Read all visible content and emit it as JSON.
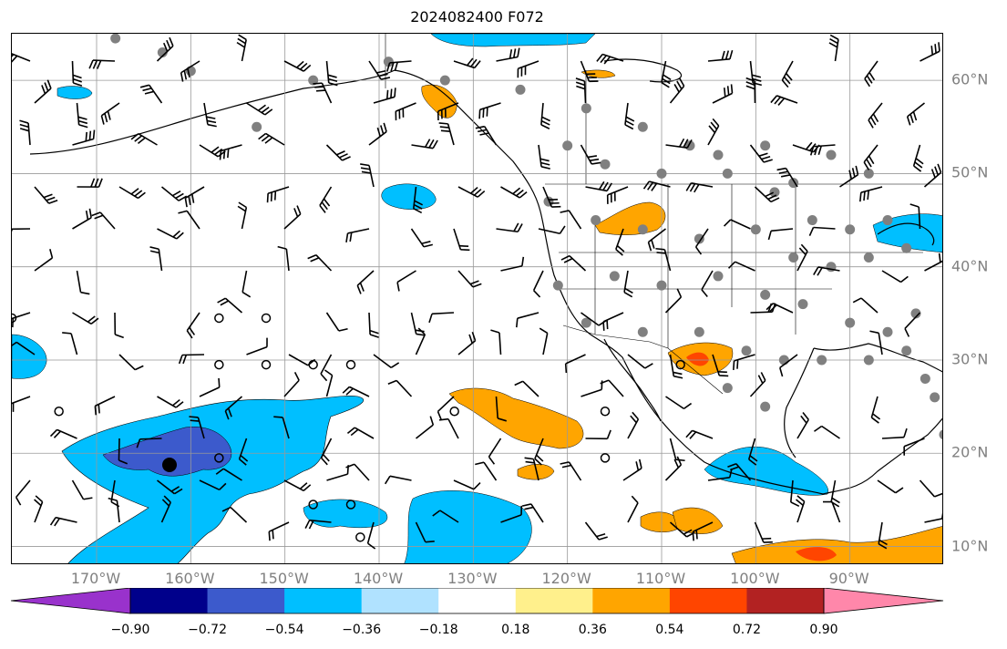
{
  "title": "2024082400 F072",
  "map": {
    "projection": "plate-carree",
    "lon_range": [
      -179,
      -80
    ],
    "lat_range": [
      8,
      65
    ],
    "gridlines": true,
    "lon_ticks": [
      "170°W",
      "160°W",
      "150°W",
      "140°W",
      "130°W",
      "120°W",
      "110°W",
      "100°W",
      "90°W"
    ],
    "lat_ticks": [
      "10°N",
      "20°N",
      "30°N",
      "40°N",
      "50°N",
      "60°N"
    ],
    "fill_regions": [
      {
        "name": "hawaii-negative-band",
        "level": -0.54,
        "color": "#00bfff"
      },
      {
        "name": "hawaii-core",
        "level": -0.72,
        "color": "#3c5acc"
      },
      {
        "name": "west-mexico-positive",
        "level": 0.36,
        "color": "#ffa500"
      },
      {
        "name": "central-america-positive",
        "level": 0.72,
        "color": "#ff4500"
      },
      {
        "name": "great-lakes-negative",
        "level": -0.54,
        "color": "#00bfff"
      },
      {
        "name": "utah-positive",
        "level": 0.36,
        "color": "#ffa500"
      },
      {
        "name": "alaska-panhandle",
        "level": 0.54,
        "color": "#ffa500"
      }
    ],
    "symbols": {
      "wind_barbs": "black",
      "stations": "gray-dots",
      "calm": "open-circles"
    }
  },
  "colorbar": {
    "colors": [
      "#9932cc",
      "#00008b",
      "#3c5acc",
      "#00bfff",
      "#b0e2ff",
      "#ffffff",
      "#fff08c",
      "#ffa500",
      "#ff4500",
      "#b22222",
      "#ff87aa"
    ],
    "tick_labels": [
      "−0.90",
      "−0.72",
      "−0.54",
      "−0.36",
      "−0.18",
      "0.18",
      "0.36",
      "0.54",
      "0.72",
      "0.90"
    ]
  }
}
